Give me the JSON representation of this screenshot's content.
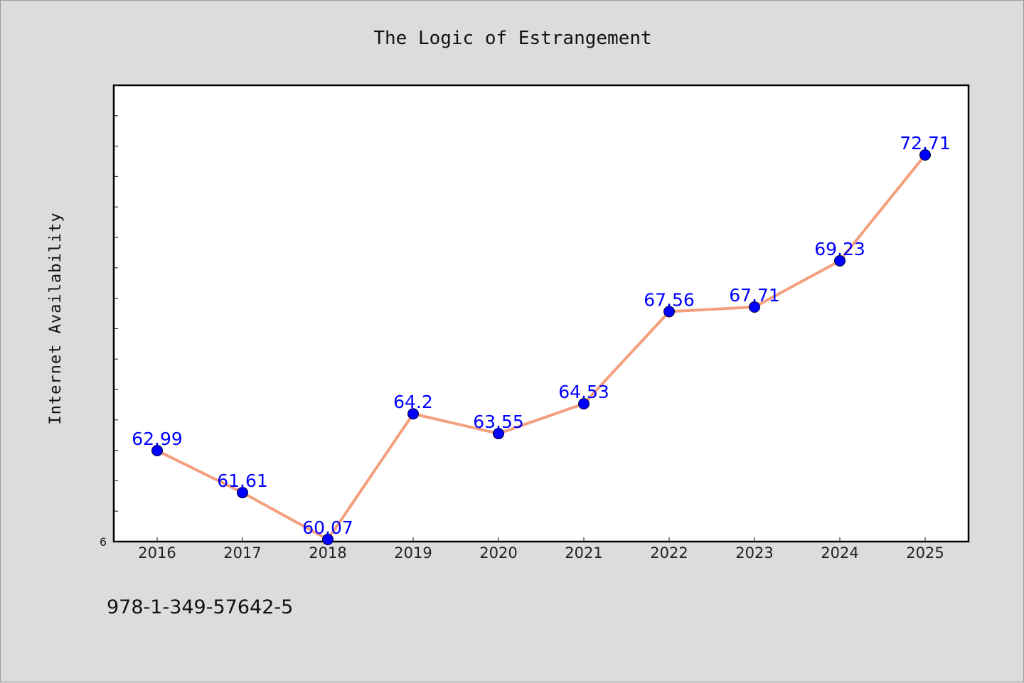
{
  "chart_data": {
    "type": "line",
    "title": "The Logic of Estrangement",
    "xlabel": "",
    "ylabel": "Internet Availability",
    "categories": [
      "2016",
      "2017",
      "2018",
      "2019",
      "2020",
      "2021",
      "2022",
      "2023",
      "2024",
      "2025"
    ],
    "series": [
      {
        "values": [
          62.99,
          61.61,
          60.07,
          64.2,
          63.55,
          64.53,
          67.56,
          67.71,
          69.23,
          72.71
        ],
        "data_labels": [
          "62.99",
          "61.61",
          "60.07",
          "64.2",
          "63.55",
          "64.53",
          "67.56",
          "67.71",
          "69.23",
          "72.71"
        ],
        "line_color": "#f4a07e",
        "marker_color": "#0000ff"
      }
    ],
    "ylim": [
      60,
      75
    ],
    "y_tick_labels": [
      "6"
    ],
    "grid": false,
    "legend": "none"
  },
  "footer": {
    "isbn": "978-1-349-57642-5"
  },
  "colors": {
    "background": "#dcdcdc",
    "plot_background": "#ffffff",
    "data_label": "#0000ff"
  }
}
